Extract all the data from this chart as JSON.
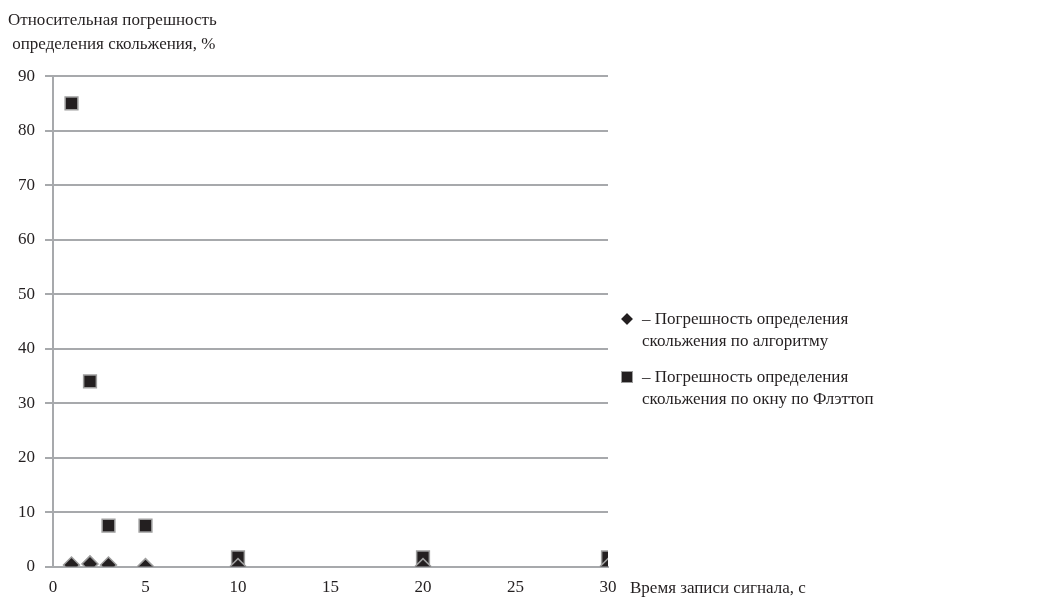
{
  "chart_data": {
    "type": "scatter",
    "ylabel": "Относительная погрешность\n определения скольжения, %",
    "xlabel": "Время записи сигнала, с",
    "xlim": [
      0,
      30
    ],
    "xticks": [
      0,
      5,
      10,
      15,
      20,
      25,
      30
    ],
    "ylim": [
      0,
      90
    ],
    "yticks": [
      0,
      10,
      20,
      30,
      40,
      50,
      60,
      70,
      80,
      90
    ],
    "grid": "y",
    "legend": "right",
    "series": [
      {
        "name": "– Погрешность определения\nскольжения по алгоритму",
        "color": "#231f20",
        "marker": "diamond",
        "x": [
          1,
          2,
          3,
          5,
          10,
          20,
          30
        ],
        "values": [
          0.3,
          0.5,
          0.3,
          0,
          0,
          0,
          0
        ]
      },
      {
        "name": "– Погрешность определения\nскольжения по окну по Флэттоп",
        "color": "#231f20",
        "marker": "square",
        "x": [
          1,
          2,
          3,
          5,
          10,
          20,
          30
        ],
        "values": [
          85,
          34,
          7.5,
          7.5,
          1.7,
          1.7,
          1.7
        ]
      }
    ]
  }
}
